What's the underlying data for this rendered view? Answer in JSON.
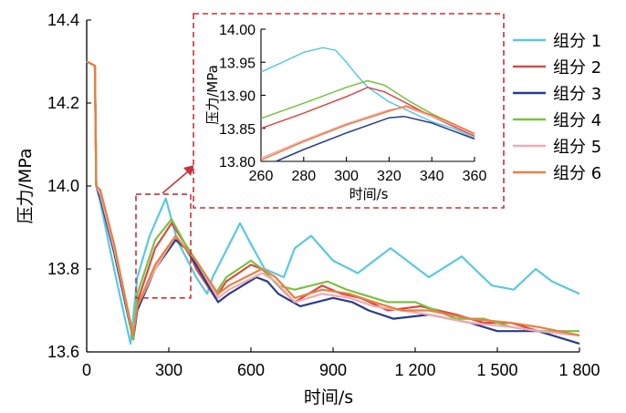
{
  "chart_data": [
    {
      "type": "line",
      "xlabel": "时间/s",
      "ylabel": "压力/MPa",
      "xlim": [
        0,
        1800
      ],
      "ylim": [
        13.6,
        14.4
      ],
      "xticks": [
        0,
        300,
        600,
        900,
        1200,
        1500,
        1800
      ],
      "xtick_labels": [
        "0",
        "300",
        "600",
        "900",
        "1 200",
        "1 500",
        "1 800"
      ],
      "yticks": [
        13.6,
        13.8,
        14.0,
        14.2,
        14.4
      ],
      "ytick_labels": [
        "13.6",
        "13.8",
        "14.0",
        "14.2",
        "14.4"
      ],
      "legend_position": "right",
      "series": [
        {
          "name": "组分 1",
          "color": "#5bc8e0",
          "points": [
            [
              0,
              14.3
            ],
            [
              30,
              14.29
            ],
            [
              35,
              14.0
            ],
            [
              50,
              13.96
            ],
            [
              100,
              13.8
            ],
            [
              160,
              13.62
            ],
            [
              185,
              13.78
            ],
            [
              230,
              13.88
            ],
            [
              289,
              13.97
            ],
            [
              330,
              13.87
            ],
            [
              400,
              13.78
            ],
            [
              440,
              13.74
            ],
            [
              460,
              13.78
            ],
            [
              560,
              13.91
            ],
            [
              600,
              13.86
            ],
            [
              650,
              13.8
            ],
            [
              720,
              13.78
            ],
            [
              760,
              13.85
            ],
            [
              820,
              13.88
            ],
            [
              900,
              13.82
            ],
            [
              990,
              13.79
            ],
            [
              1110,
              13.85
            ],
            [
              1250,
              13.78
            ],
            [
              1370,
              13.83
            ],
            [
              1480,
              13.76
            ],
            [
              1560,
              13.75
            ],
            [
              1640,
              13.8
            ],
            [
              1700,
              13.77
            ],
            [
              1800,
              13.74
            ]
          ]
        },
        {
          "name": "组分 2",
          "color": "#d94a4a",
          "points": [
            [
              0,
              14.3
            ],
            [
              30,
              14.29
            ],
            [
              35,
              14.0
            ],
            [
              50,
              13.98
            ],
            [
              100,
              13.85
            ],
            [
              170,
              13.63
            ],
            [
              185,
              13.72
            ],
            [
              250,
              13.85
            ],
            [
              310,
              13.91
            ],
            [
              360,
              13.86
            ],
            [
              400,
              13.8
            ],
            [
              470,
              13.73
            ],
            [
              510,
              13.77
            ],
            [
              600,
              13.81
            ],
            [
              640,
              13.8
            ],
            [
              700,
              13.76
            ],
            [
              760,
              13.72
            ],
            [
              860,
              13.76
            ],
            [
              930,
              13.74
            ],
            [
              1000,
              13.73
            ],
            [
              1100,
              13.7
            ],
            [
              1220,
              13.71
            ],
            [
              1350,
              13.69
            ],
            [
              1450,
              13.67
            ],
            [
              1550,
              13.67
            ],
            [
              1650,
              13.65
            ],
            [
              1800,
              13.64
            ]
          ]
        },
        {
          "name": "组分 3",
          "color": "#283c8c",
          "points": [
            [
              0,
              14.3
            ],
            [
              30,
              14.29
            ],
            [
              35,
              14.0
            ],
            [
              50,
              13.97
            ],
            [
              100,
              13.84
            ],
            [
              170,
              13.63
            ],
            [
              185,
              13.7
            ],
            [
              250,
              13.8
            ],
            [
              325,
              13.87
            ],
            [
              360,
              13.85
            ],
            [
              400,
              13.81
            ],
            [
              480,
              13.72
            ],
            [
              520,
              13.74
            ],
            [
              620,
              13.78
            ],
            [
              660,
              13.77
            ],
            [
              700,
              13.74
            ],
            [
              780,
              13.71
            ],
            [
              900,
              13.73
            ],
            [
              970,
              13.72
            ],
            [
              1030,
              13.7
            ],
            [
              1120,
              13.68
            ],
            [
              1250,
              13.69
            ],
            [
              1400,
              13.67
            ],
            [
              1500,
              13.65
            ],
            [
              1550,
              13.65
            ],
            [
              1650,
              13.65
            ],
            [
              1700,
              13.64
            ],
            [
              1800,
              13.62
            ]
          ]
        },
        {
          "name": "组分 4",
          "color": "#7ac142",
          "points": [
            [
              0,
              14.3
            ],
            [
              30,
              14.29
            ],
            [
              35,
              14.0
            ],
            [
              50,
              13.98
            ],
            [
              100,
              13.86
            ],
            [
              170,
              13.63
            ],
            [
              185,
              13.74
            ],
            [
              250,
              13.87
            ],
            [
              310,
              13.92
            ],
            [
              360,
              13.86
            ],
            [
              400,
              13.82
            ],
            [
              470,
              13.74
            ],
            [
              510,
              13.78
            ],
            [
              600,
              13.82
            ],
            [
              640,
              13.8
            ],
            [
              700,
              13.76
            ],
            [
              760,
              13.75
            ],
            [
              880,
              13.77
            ],
            [
              950,
              13.75
            ],
            [
              1000,
              13.74
            ],
            [
              1100,
              13.72
            ],
            [
              1200,
              13.72
            ],
            [
              1350,
              13.68
            ],
            [
              1450,
              13.68
            ],
            [
              1550,
              13.66
            ],
            [
              1650,
              13.65
            ],
            [
              1800,
              13.65
            ]
          ]
        },
        {
          "name": "组分 5",
          "color": "#f2aab5",
          "points": [
            [
              0,
              14.3
            ],
            [
              30,
              14.29
            ],
            [
              35,
              14.0
            ],
            [
              50,
              13.98
            ],
            [
              100,
              13.85
            ],
            [
              170,
              13.64
            ],
            [
              185,
              13.71
            ],
            [
              250,
              13.8
            ],
            [
              325,
              13.88
            ],
            [
              360,
              13.85
            ],
            [
              400,
              13.82
            ],
            [
              480,
              13.73
            ],
            [
              520,
              13.75
            ],
            [
              640,
              13.79
            ],
            [
              690,
              13.77
            ],
            [
              760,
              13.72
            ],
            [
              860,
              13.74
            ],
            [
              960,
              13.73
            ],
            [
              1050,
              13.71
            ],
            [
              1150,
              13.7
            ],
            [
              1250,
              13.69
            ],
            [
              1400,
              13.67
            ],
            [
              1550,
              13.66
            ],
            [
              1650,
              13.65
            ],
            [
              1800,
              13.64
            ]
          ]
        },
        {
          "name": "组分 6",
          "color": "#e8803c",
          "points": [
            [
              0,
              14.3
            ],
            [
              30,
              14.29
            ],
            [
              35,
              14.0
            ],
            [
              50,
              13.99
            ],
            [
              100,
              13.86
            ],
            [
              170,
              13.64
            ],
            [
              185,
              13.71
            ],
            [
              250,
              13.81
            ],
            [
              325,
              13.88
            ],
            [
              360,
              13.85
            ],
            [
              400,
              13.82
            ],
            [
              480,
              13.74
            ],
            [
              520,
              13.76
            ],
            [
              640,
              13.8
            ],
            [
              690,
              13.78
            ],
            [
              760,
              13.73
            ],
            [
              860,
              13.75
            ],
            [
              960,
              13.74
            ],
            [
              1050,
              13.72
            ],
            [
              1150,
              13.7
            ],
            [
              1250,
              13.7
            ],
            [
              1400,
              13.68
            ],
            [
              1550,
              13.67
            ],
            [
              1650,
              13.66
            ],
            [
              1800,
              13.64
            ]
          ]
        }
      ]
    },
    {
      "type": "line",
      "xlabel": "时间/s",
      "ylabel": "压力/MPa",
      "xlim": [
        260,
        360
      ],
      "ylim": [
        13.8,
        14.0
      ],
      "xticks": [
        260,
        280,
        300,
        320,
        340,
        360
      ],
      "xtick_labels": [
        "260",
        "280",
        "300",
        "320",
        "340",
        "360"
      ],
      "yticks": [
        13.8,
        13.85,
        13.9,
        13.95,
        14.0
      ],
      "ytick_labels": [
        "13.80",
        "13.85",
        "13.90",
        "13.95",
        "14.00"
      ],
      "zoom_window": {
        "x": [
          180,
          380
        ],
        "y": [
          13.73,
          13.98
        ]
      },
      "series": [
        {
          "name": "组分 1",
          "color": "#5bc8e0",
          "points": [
            [
              260,
              13.935
            ],
            [
              270,
              13.95
            ],
            [
              280,
              13.965
            ],
            [
              289,
              13.972
            ],
            [
              295,
              13.968
            ],
            [
              300,
              13.95
            ],
            [
              305,
              13.93
            ],
            [
              310,
              13.912
            ],
            [
              320,
              13.89
            ],
            [
              330,
              13.875
            ],
            [
              340,
              13.86
            ],
            [
              350,
              13.85
            ],
            [
              360,
              13.835
            ]
          ]
        },
        {
          "name": "组分 2",
          "color": "#d94a4a",
          "points": [
            [
              260,
              13.85
            ],
            [
              280,
              13.873
            ],
            [
              300,
              13.898
            ],
            [
              310,
              13.912
            ],
            [
              318,
              13.905
            ],
            [
              330,
              13.885
            ],
            [
              340,
              13.868
            ],
            [
              350,
              13.853
            ],
            [
              360,
              13.838
            ]
          ]
        },
        {
          "name": "组分 3",
          "color": "#283c8c",
          "points": [
            [
              267,
              13.8
            ],
            [
              280,
              13.818
            ],
            [
              300,
              13.843
            ],
            [
              320,
              13.866
            ],
            [
              327,
              13.868
            ],
            [
              340,
              13.858
            ],
            [
              350,
              13.846
            ],
            [
              360,
              13.834
            ]
          ]
        },
        {
          "name": "组分 4",
          "color": "#7ac142",
          "points": [
            [
              260,
              13.865
            ],
            [
              280,
              13.888
            ],
            [
              300,
              13.912
            ],
            [
              310,
              13.922
            ],
            [
              318,
              13.915
            ],
            [
              330,
              13.89
            ],
            [
              340,
              13.872
            ],
            [
              350,
              13.857
            ],
            [
              360,
              13.84
            ]
          ]
        },
        {
          "name": "组分 5",
          "color": "#f2aab5",
          "points": [
            [
              260,
              13.805
            ],
            [
              280,
              13.832
            ],
            [
              300,
              13.857
            ],
            [
              320,
              13.878
            ],
            [
              328,
              13.882
            ],
            [
              340,
              13.868
            ],
            [
              350,
              13.855
            ],
            [
              360,
              13.84
            ]
          ]
        },
        {
          "name": "组分 6",
          "color": "#e8803c",
          "points": [
            [
              260,
              13.802
            ],
            [
              280,
              13.83
            ],
            [
              300,
              13.855
            ],
            [
              320,
              13.876
            ],
            [
              328,
              13.884
            ],
            [
              340,
              13.87
            ],
            [
              350,
              13.857
            ],
            [
              360,
              13.842
            ]
          ]
        }
      ]
    }
  ]
}
